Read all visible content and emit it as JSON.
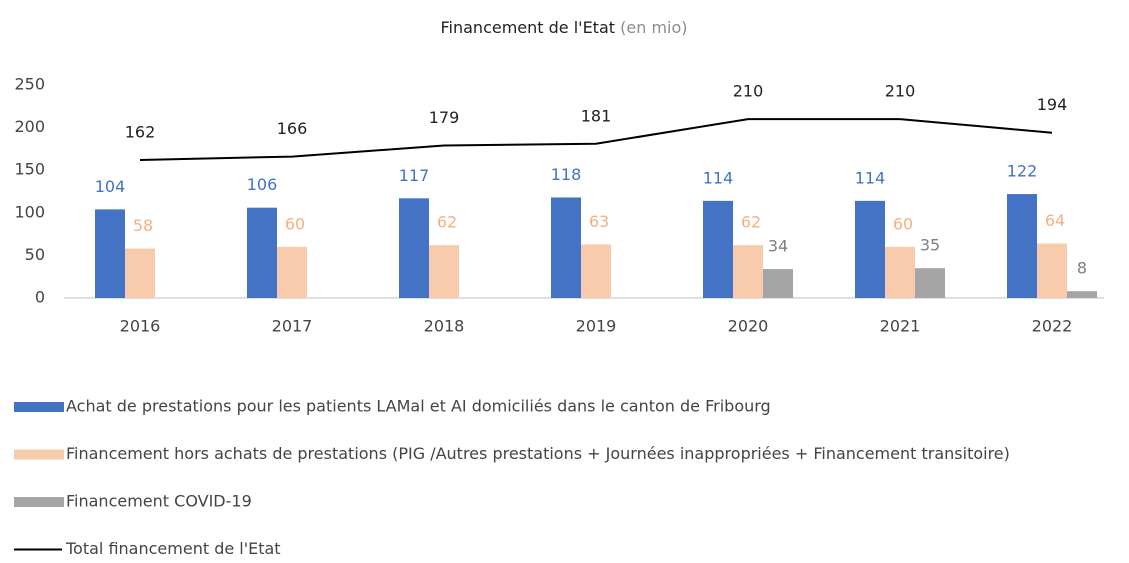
{
  "chart_data": {
    "type": "bar",
    "title": "Financement de l'Etat",
    "subtitle": "(en mio)",
    "categories": [
      "2016",
      "2017",
      "2018",
      "2019",
      "2020",
      "2021",
      "2022"
    ],
    "series": [
      {
        "name": "Achat de prestations pour les patients LAMal et AI domiciliés dans le canton de Fribourg",
        "type": "bar",
        "color": "#4472c4",
        "label_color": "#4472c4",
        "values": [
          104,
          106,
          117,
          118,
          114,
          114,
          122
        ]
      },
      {
        "name": "Financement hors achats de prestations (PIG /Autres prestations + Journées inappropriées + Financement transitoire)",
        "type": "bar",
        "color": "#f8cbad",
        "label_color": "#f4b183",
        "values": [
          58,
          60,
          62,
          63,
          62,
          60,
          64
        ]
      },
      {
        "name": "Financement COVID-19",
        "type": "bar",
        "color": "#a5a5a5",
        "label_color": "#7f7f7f",
        "values": [
          null,
          null,
          null,
          null,
          34,
          35,
          8
        ]
      },
      {
        "name": "Total financement de l'Etat",
        "type": "line",
        "color": "#000000",
        "label_color": "#222222",
        "values": [
          162,
          166,
          179,
          181,
          210,
          210,
          194
        ]
      }
    ],
    "ylim": [
      0,
      250
    ],
    "yticks": [
      0,
      50,
      100,
      150,
      200,
      250
    ],
    "grid": false,
    "legend": "bottom"
  }
}
